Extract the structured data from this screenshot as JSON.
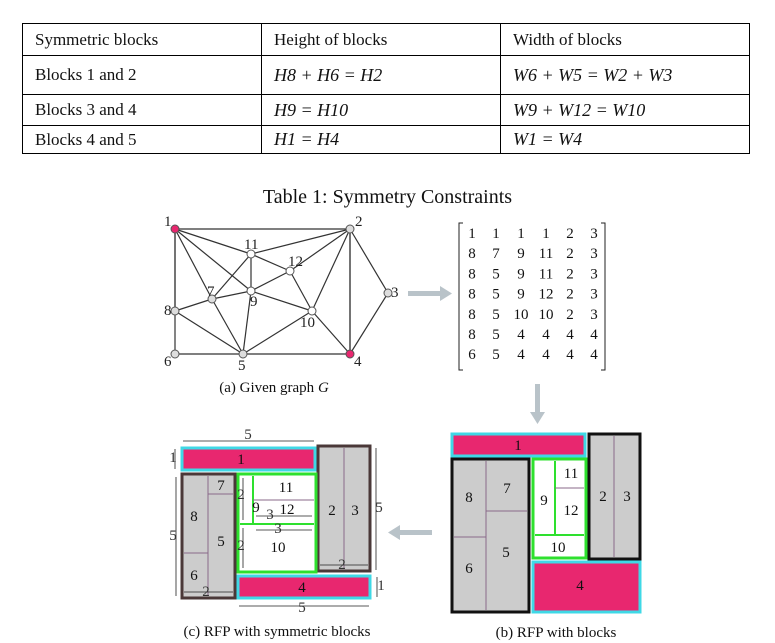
{
  "table": {
    "headers": [
      "Symmetric blocks",
      "Height of blocks",
      "Width of blocks"
    ],
    "rows": [
      {
        "blocks": "Blocks 1 and 2",
        "height": "H8 + H6 = H2",
        "width": "W6 + W5 = W2 + W3"
      },
      {
        "blocks": "Blocks 3 and 4",
        "height": "H9 = H10",
        "width": "W9 + W12 = W10"
      },
      {
        "blocks": "Blocks 4 and 5",
        "height": "H1 = H4",
        "width": "W1 = W4"
      }
    ],
    "caption": "Table 1: Symmetry Constraints"
  },
  "figure": {
    "graph_caption": "(a) Given graph",
    "graph_caption_var": "G",
    "graph_nodes": [
      "1",
      "2",
      "3",
      "4",
      "5",
      "6",
      "7",
      "8",
      "9",
      "10",
      "11",
      "12"
    ],
    "matrix": [
      [
        "1",
        "1",
        "1",
        "1",
        "2",
        "3"
      ],
      [
        "8",
        "7",
        "9",
        "11",
        "2",
        "3"
      ],
      [
        "8",
        "5",
        "9",
        "11",
        "2",
        "3"
      ],
      [
        "8",
        "5",
        "9",
        "12",
        "2",
        "3"
      ],
      [
        "8",
        "5",
        "10",
        "10",
        "2",
        "3"
      ],
      [
        "8",
        "5",
        "4",
        "4",
        "4",
        "4"
      ],
      [
        "6",
        "5",
        "4",
        "4",
        "4",
        "4"
      ]
    ],
    "caption_b": "(b) RFP with blocks",
    "caption_c": "(c) RFP with symmetric blocks",
    "dim_labels": {
      "five": "5",
      "two": "2",
      "three": "3",
      "one": "1"
    },
    "colors": {
      "pink": "#e8276f",
      "cyan": "#3fd8e6",
      "green": "#2ee02e",
      "gray": "#cccccc",
      "arrow": "#b9c3c9"
    }
  }
}
